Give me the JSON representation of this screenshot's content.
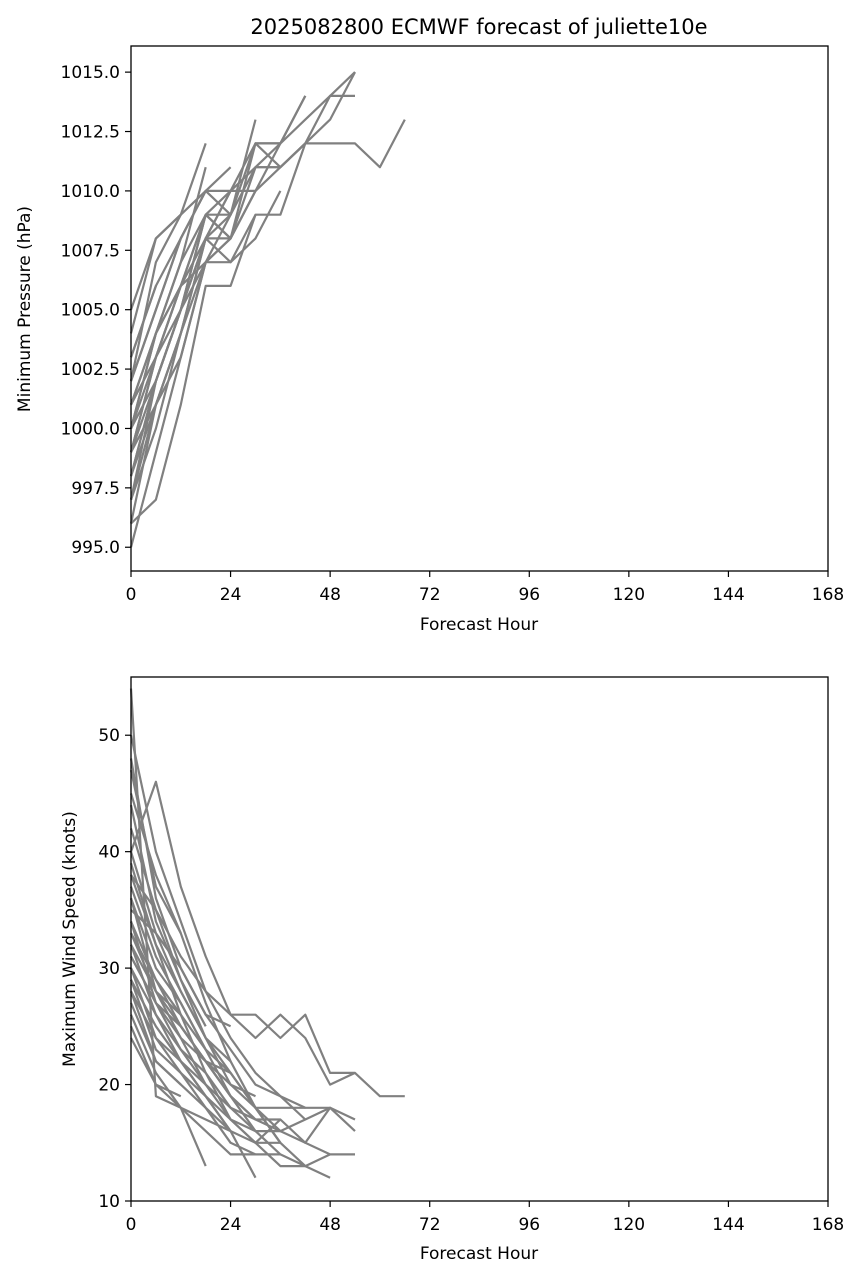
{
  "line_color": "#808080",
  "chart_data": [
    {
      "type": "line",
      "title": "2025082800 ECMWF forecast of juliette10e",
      "xlabel": "Forecast Hour",
      "ylabel": "Minimum Pressure (hPa)",
      "xlim": [
        0,
        168
      ],
      "ylim": [
        994.0,
        1016.1
      ],
      "xticks": [
        0,
        24,
        48,
        72,
        96,
        120,
        144,
        168
      ],
      "yticks": [
        995.0,
        997.5,
        1000.0,
        1002.5,
        1005.0,
        1007.5,
        1010.0,
        1012.5,
        1015.0
      ],
      "ytick_labels": [
        "995.0",
        "997.5",
        "1000.0",
        "1002.5",
        "1005.0",
        "1007.5",
        "1010.0",
        "1012.5",
        "1015.0"
      ],
      "grid": false,
      "series": [
        {
          "x": [
            0,
            6,
            12,
            18,
            24,
            30,
            36,
            42,
            48,
            54,
            60,
            66
          ],
          "y": [
            999,
            1002,
            1005,
            1008,
            1009,
            1011,
            1011,
            1012,
            1012,
            1012,
            1011,
            1013
          ]
        },
        {
          "x": [
            0,
            6,
            12,
            18,
            24,
            30,
            36,
            42,
            48,
            54
          ],
          "y": [
            998,
            1002,
            1005,
            1007,
            1008,
            1010,
            1012,
            1013,
            1014,
            1015
          ]
        },
        {
          "x": [
            0,
            6,
            12,
            18,
            24,
            30,
            36,
            42,
            48,
            54
          ],
          "y": [
            1000,
            1003,
            1006,
            1009,
            1009,
            1012,
            1011,
            1012,
            1014,
            1014
          ]
        },
        {
          "x": [
            0,
            6,
            12,
            18,
            24,
            30,
            36,
            42,
            48,
            54
          ],
          "y": [
            997,
            1002,
            1005,
            1008,
            1010,
            1010,
            1011,
            1012,
            1013,
            1015
          ]
        },
        {
          "x": [
            0,
            6,
            12,
            18,
            24,
            30,
            36,
            42
          ],
          "y": [
            996,
            997,
            1001,
            1006,
            1006,
            1009,
            1009,
            1012
          ]
        },
        {
          "x": [
            0,
            6,
            12,
            18,
            24,
            30,
            36,
            42
          ],
          "y": [
            1001,
            1004,
            1007,
            1009,
            1010,
            1012,
            1012,
            1014
          ]
        },
        {
          "x": [
            0,
            6,
            12,
            18,
            24,
            30,
            36,
            42
          ],
          "y": [
            1002,
            1005,
            1008,
            1010,
            1010,
            1011,
            1012,
            1014
          ]
        },
        {
          "x": [
            0,
            6,
            12,
            18,
            24,
            30,
            36
          ],
          "y": [
            999,
            1003,
            1006,
            1008,
            1008,
            1011,
            1011
          ]
        },
        {
          "x": [
            0,
            6,
            12,
            18,
            24,
            30,
            36
          ],
          "y": [
            997,
            1000,
            1004,
            1008,
            1007,
            1008,
            1010
          ]
        },
        {
          "x": [
            0,
            6,
            12,
            18,
            24,
            30,
            36
          ],
          "y": [
            1000,
            1004,
            1006,
            1009,
            1008,
            1012,
            1012
          ]
        },
        {
          "x": [
            0,
            6,
            12,
            18,
            24,
            30
          ],
          "y": [
            1001,
            1003,
            1006,
            1007,
            1007,
            1009
          ]
        },
        {
          "x": [
            0,
            6,
            12,
            18,
            24,
            30
          ],
          "y": [
            998,
            1001,
            1004,
            1007,
            1009,
            1013
          ]
        },
        {
          "x": [
            0,
            6,
            12,
            18,
            24,
            30
          ],
          "y": [
            1000,
            1002,
            1005,
            1009,
            1008,
            1010
          ]
        },
        {
          "x": [
            0,
            6,
            12,
            18,
            24
          ],
          "y": [
            1002,
            1005,
            1008,
            1010,
            1011
          ]
        },
        {
          "x": [
            0,
            6,
            12,
            18,
            24
          ],
          "y": [
            999,
            1001,
            1004,
            1008,
            1010
          ]
        },
        {
          "x": [
            0,
            6,
            12,
            18,
            24
          ],
          "y": [
            1003,
            1006,
            1008,
            1010,
            1009
          ]
        },
        {
          "x": [
            0,
            6,
            12,
            18,
            24
          ],
          "y": [
            996,
            1001,
            1003,
            1007,
            1008
          ]
        },
        {
          "x": [
            0,
            6,
            12,
            18
          ],
          "y": [
            1004,
            1008,
            1009,
            1010
          ]
        },
        {
          "x": [
            0,
            6,
            12,
            18
          ],
          "y": [
            1005,
            1008,
            1009,
            1012
          ]
        },
        {
          "x": [
            0,
            6,
            12,
            18
          ],
          "y": [
            1000,
            1004,
            1007,
            1011
          ]
        },
        {
          "x": [
            0,
            6,
            12,
            18
          ],
          "y": [
            998,
            1002,
            1005,
            1009
          ]
        },
        {
          "x": [
            0,
            6,
            12,
            18
          ],
          "y": [
            995,
            999,
            1003,
            1007
          ]
        },
        {
          "x": [
            0,
            6,
            12
          ],
          "y": [
            1001,
            1004,
            1006
          ]
        },
        {
          "x": [
            0,
            6,
            12
          ],
          "y": [
            1002,
            1007,
            1009
          ]
        },
        {
          "x": [
            0,
            6,
            12
          ],
          "y": [
            997,
            1001,
            1004
          ]
        },
        {
          "x": [
            0,
            6,
            12
          ],
          "y": [
            999,
            1003,
            1005
          ]
        },
        {
          "x": [
            0,
            6
          ],
          "y": [
            1003,
            1006
          ]
        }
      ]
    },
    {
      "type": "line",
      "title": "",
      "xlabel": "Forecast Hour",
      "ylabel": "Maximum Wind Speed (knots)",
      "xlim": [
        0,
        168
      ],
      "ylim": [
        10,
        55
      ],
      "xticks": [
        0,
        24,
        48,
        72,
        96,
        120,
        144,
        168
      ],
      "yticks": [
        10,
        20,
        30,
        40,
        50
      ],
      "ytick_labels": [
        "10",
        "20",
        "30",
        "40",
        "50"
      ],
      "grid": false,
      "series": [
        {
          "x": [
            0,
            6,
            12,
            18,
            24,
            30,
            36,
            42,
            48,
            54,
            60,
            66
          ],
          "y": [
            38,
            35,
            31,
            28,
            26,
            26,
            24,
            26,
            21,
            21,
            19,
            19
          ]
        },
        {
          "x": [
            0,
            6,
            12,
            18,
            24,
            30,
            36,
            42,
            48,
            54
          ],
          "y": [
            40,
            46,
            37,
            31,
            26,
            24,
            26,
            24,
            20,
            21
          ]
        },
        {
          "x": [
            0,
            6,
            12,
            18,
            24,
            30,
            36,
            42,
            48,
            54
          ],
          "y": [
            35,
            33,
            30,
            26,
            23,
            20,
            19,
            18,
            18,
            17
          ]
        },
        {
          "x": [
            0,
            6,
            12,
            18,
            24,
            30,
            36,
            42,
            48,
            54
          ],
          "y": [
            32,
            28,
            25,
            22,
            19,
            17,
            16,
            17,
            18,
            16
          ]
        },
        {
          "x": [
            0,
            6,
            12,
            18,
            24,
            30,
            36,
            42,
            48,
            54
          ],
          "y": [
            45,
            38,
            33,
            27,
            22,
            18,
            16,
            15,
            14,
            14
          ]
        },
        {
          "x": [
            0,
            6,
            12,
            18,
            24,
            30,
            36,
            42,
            48
          ],
          "y": [
            30,
            26,
            23,
            20,
            18,
            16,
            14,
            13,
            12
          ]
        },
        {
          "x": [
            0,
            6,
            12,
            18,
            24,
            30,
            36,
            42,
            48
          ],
          "y": [
            36,
            30,
            27,
            23,
            21,
            18,
            15,
            13,
            14
          ]
        },
        {
          "x": [
            0,
            6,
            12,
            18,
            24,
            30,
            36,
            42,
            48
          ],
          "y": [
            33,
            29,
            25,
            22,
            19,
            17,
            17,
            15,
            18
          ]
        },
        {
          "x": [
            0,
            6,
            12,
            18,
            24,
            30,
            36,
            42
          ],
          "y": [
            50,
            40,
            34,
            28,
            24,
            21,
            19,
            17
          ]
        },
        {
          "x": [
            0,
            6,
            12,
            18,
            24,
            30,
            36,
            42
          ],
          "y": [
            28,
            24,
            21,
            19,
            17,
            15,
            13,
            13
          ]
        },
        {
          "x": [
            0,
            6,
            12,
            18,
            24,
            30,
            36,
            42
          ],
          "y": [
            31,
            27,
            24,
            22,
            20,
            18,
            18,
            18
          ]
        },
        {
          "x": [
            0,
            6,
            12,
            18,
            24,
            30,
            36
          ],
          "y": [
            42,
            35,
            29,
            24,
            21,
            18,
            15
          ]
        },
        {
          "x": [
            0,
            6,
            12,
            18,
            24,
            30,
            36
          ],
          "y": [
            29,
            25,
            22,
            19,
            16,
            15,
            15
          ]
        },
        {
          "x": [
            0,
            6,
            12,
            18,
            24,
            30,
            36
          ],
          "y": [
            37,
            31,
            27,
            23,
            19,
            16,
            16
          ]
        },
        {
          "x": [
            0,
            6,
            12,
            18,
            24,
            30,
            36
          ],
          "y": [
            34,
            29,
            26,
            21,
            17,
            15,
            17
          ]
        },
        {
          "x": [
            0,
            6,
            12,
            18,
            24,
            30,
            36
          ],
          "y": [
            27,
            22,
            20,
            18,
            15,
            14,
            14
          ]
        },
        {
          "x": [
            0,
            6,
            12,
            18,
            24,
            30
          ],
          "y": [
            33,
            28,
            24,
            20,
            17,
            16
          ]
        },
        {
          "x": [
            0,
            6,
            12,
            18,
            24,
            30
          ],
          "y": [
            31,
            27,
            23,
            21,
            18,
            17
          ]
        },
        {
          "x": [
            0,
            6,
            12,
            18,
            24,
            30
          ],
          "y": [
            26,
            21,
            18,
            16,
            14,
            14
          ]
        },
        {
          "x": [
            0,
            6,
            12,
            18,
            24,
            30
          ],
          "y": [
            38,
            32,
            28,
            24,
            20,
            19
          ]
        },
        {
          "x": [
            0,
            6,
            12,
            18,
            24,
            30
          ],
          "y": [
            30,
            24,
            22,
            19,
            16,
            12
          ]
        },
        {
          "x": [
            0,
            6,
            12,
            18,
            24
          ],
          "y": [
            48,
            36,
            30,
            26,
            25
          ]
        },
        {
          "x": [
            0,
            6,
            12,
            18,
            24
          ],
          "y": [
            34,
            27,
            25,
            22,
            21
          ]
        },
        {
          "x": [
            0,
            6,
            12,
            18,
            24
          ],
          "y": [
            29,
            23,
            21,
            18,
            16
          ]
        },
        {
          "x": [
            0,
            6,
            12,
            18,
            24
          ],
          "y": [
            40,
            33,
            28,
            24,
            22
          ]
        },
        {
          "x": [
            0,
            6,
            12,
            18,
            24
          ],
          "y": [
            25,
            20,
            18,
            17,
            16
          ]
        },
        {
          "x": [
            0,
            6,
            12,
            18
          ],
          "y": [
            54,
            19,
            18,
            13
          ]
        },
        {
          "x": [
            0,
            6,
            12,
            18
          ],
          "y": [
            36,
            28,
            26,
            23
          ]
        },
        {
          "x": [
            0,
            6,
            12,
            18
          ],
          "y": [
            32,
            26,
            22,
            20
          ]
        },
        {
          "x": [
            0,
            6,
            12,
            18
          ],
          "y": [
            44,
            34,
            29,
            25
          ]
        },
        {
          "x": [
            0,
            6,
            12
          ],
          "y": [
            24,
            20,
            19
          ]
        },
        {
          "x": [
            0,
            6,
            12
          ],
          "y": [
            39,
            32,
            26
          ]
        },
        {
          "x": [
            0,
            6,
            12
          ],
          "y": [
            28,
            22,
            20
          ]
        },
        {
          "x": [
            0,
            6,
            12
          ],
          "y": [
            47,
            37,
            33
          ]
        }
      ]
    }
  ]
}
